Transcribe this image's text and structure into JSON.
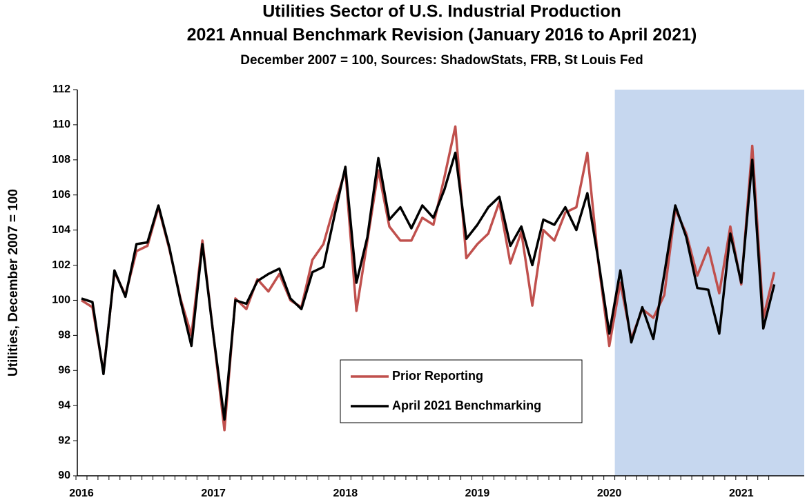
{
  "chart_data": {
    "type": "line",
    "title": "Utilities Sector of U.S. Industrial Production",
    "subtitle": "2021 Annual Benchmark  Revision (January 2016 to April 2021)",
    "note": "December 2007 = 100, Sources: ShadowStats, FRB, St Louis Fed",
    "y_label": "Utilities, December 2007 = 100",
    "categories": [
      "2016",
      null,
      null,
      null,
      null,
      null,
      null,
      null,
      null,
      null,
      null,
      null,
      "2017",
      null,
      null,
      null,
      null,
      null,
      null,
      null,
      null,
      null,
      null,
      null,
      "2018",
      null,
      null,
      null,
      null,
      null,
      null,
      null,
      null,
      null,
      null,
      null,
      "2019",
      null,
      null,
      null,
      null,
      null,
      null,
      null,
      null,
      null,
      null,
      null,
      "2020",
      null,
      null,
      null,
      null,
      null,
      null,
      null,
      null,
      null,
      null,
      null,
      "2021",
      null,
      null,
      null
    ],
    "series": [
      {
        "name": "Prior Reporting",
        "color": "#c0504d",
        "values": [
          100.0,
          99.6,
          95.9,
          101.6,
          100.3,
          102.8,
          103.1,
          105.3,
          102.9,
          100.1,
          98.0,
          103.4,
          98.0,
          92.6,
          100.1,
          99.5,
          101.2,
          100.5,
          101.5,
          100.0,
          99.6,
          102.3,
          103.2,
          105.4,
          107.4,
          99.4,
          103.4,
          107.4,
          104.2,
          103.4,
          103.4,
          104.7,
          104.3,
          107.0,
          109.9,
          102.4,
          103.2,
          103.8,
          105.6,
          102.1,
          103.9,
          99.7,
          104.0,
          103.4,
          105.0,
          105.3,
          108.4,
          102.2,
          97.4,
          101.0,
          97.8,
          99.5,
          99.0,
          100.3,
          105.2,
          103.8,
          101.4,
          103.0,
          100.4,
          104.2,
          100.9,
          108.8,
          99.0,
          101.6
        ]
      },
      {
        "name": "April 2021 Benchmarking",
        "color": "#000000",
        "values": [
          100.1,
          99.9,
          95.8,
          101.7,
          100.2,
          103.2,
          103.3,
          105.4,
          103.0,
          100.0,
          97.4,
          103.2,
          98.0,
          93.2,
          100.0,
          99.8,
          101.1,
          101.5,
          101.8,
          100.1,
          99.5,
          101.6,
          101.9,
          104.8,
          107.6,
          101.0,
          103.6,
          108.1,
          104.6,
          105.3,
          104.1,
          105.4,
          104.7,
          106.3,
          108.4,
          103.5,
          104.3,
          105.3,
          105.9,
          103.1,
          104.2,
          102.0,
          104.6,
          104.3,
          105.3,
          104.0,
          106.1,
          102.3,
          98.1,
          101.7,
          97.6,
          99.6,
          97.8,
          101.5,
          105.4,
          103.6,
          100.7,
          100.6,
          98.1,
          103.8,
          101.0,
          108.0,
          98.4,
          100.9
        ]
      }
    ],
    "ylim": [
      90,
      112
    ],
    "yticks": [
      90,
      92,
      94,
      96,
      98,
      100,
      102,
      104,
      106,
      108,
      110,
      112
    ],
    "grid": false,
    "legend": "center",
    "highlight": {
      "from": "2020",
      "color": "#c6d7ef"
    }
  }
}
